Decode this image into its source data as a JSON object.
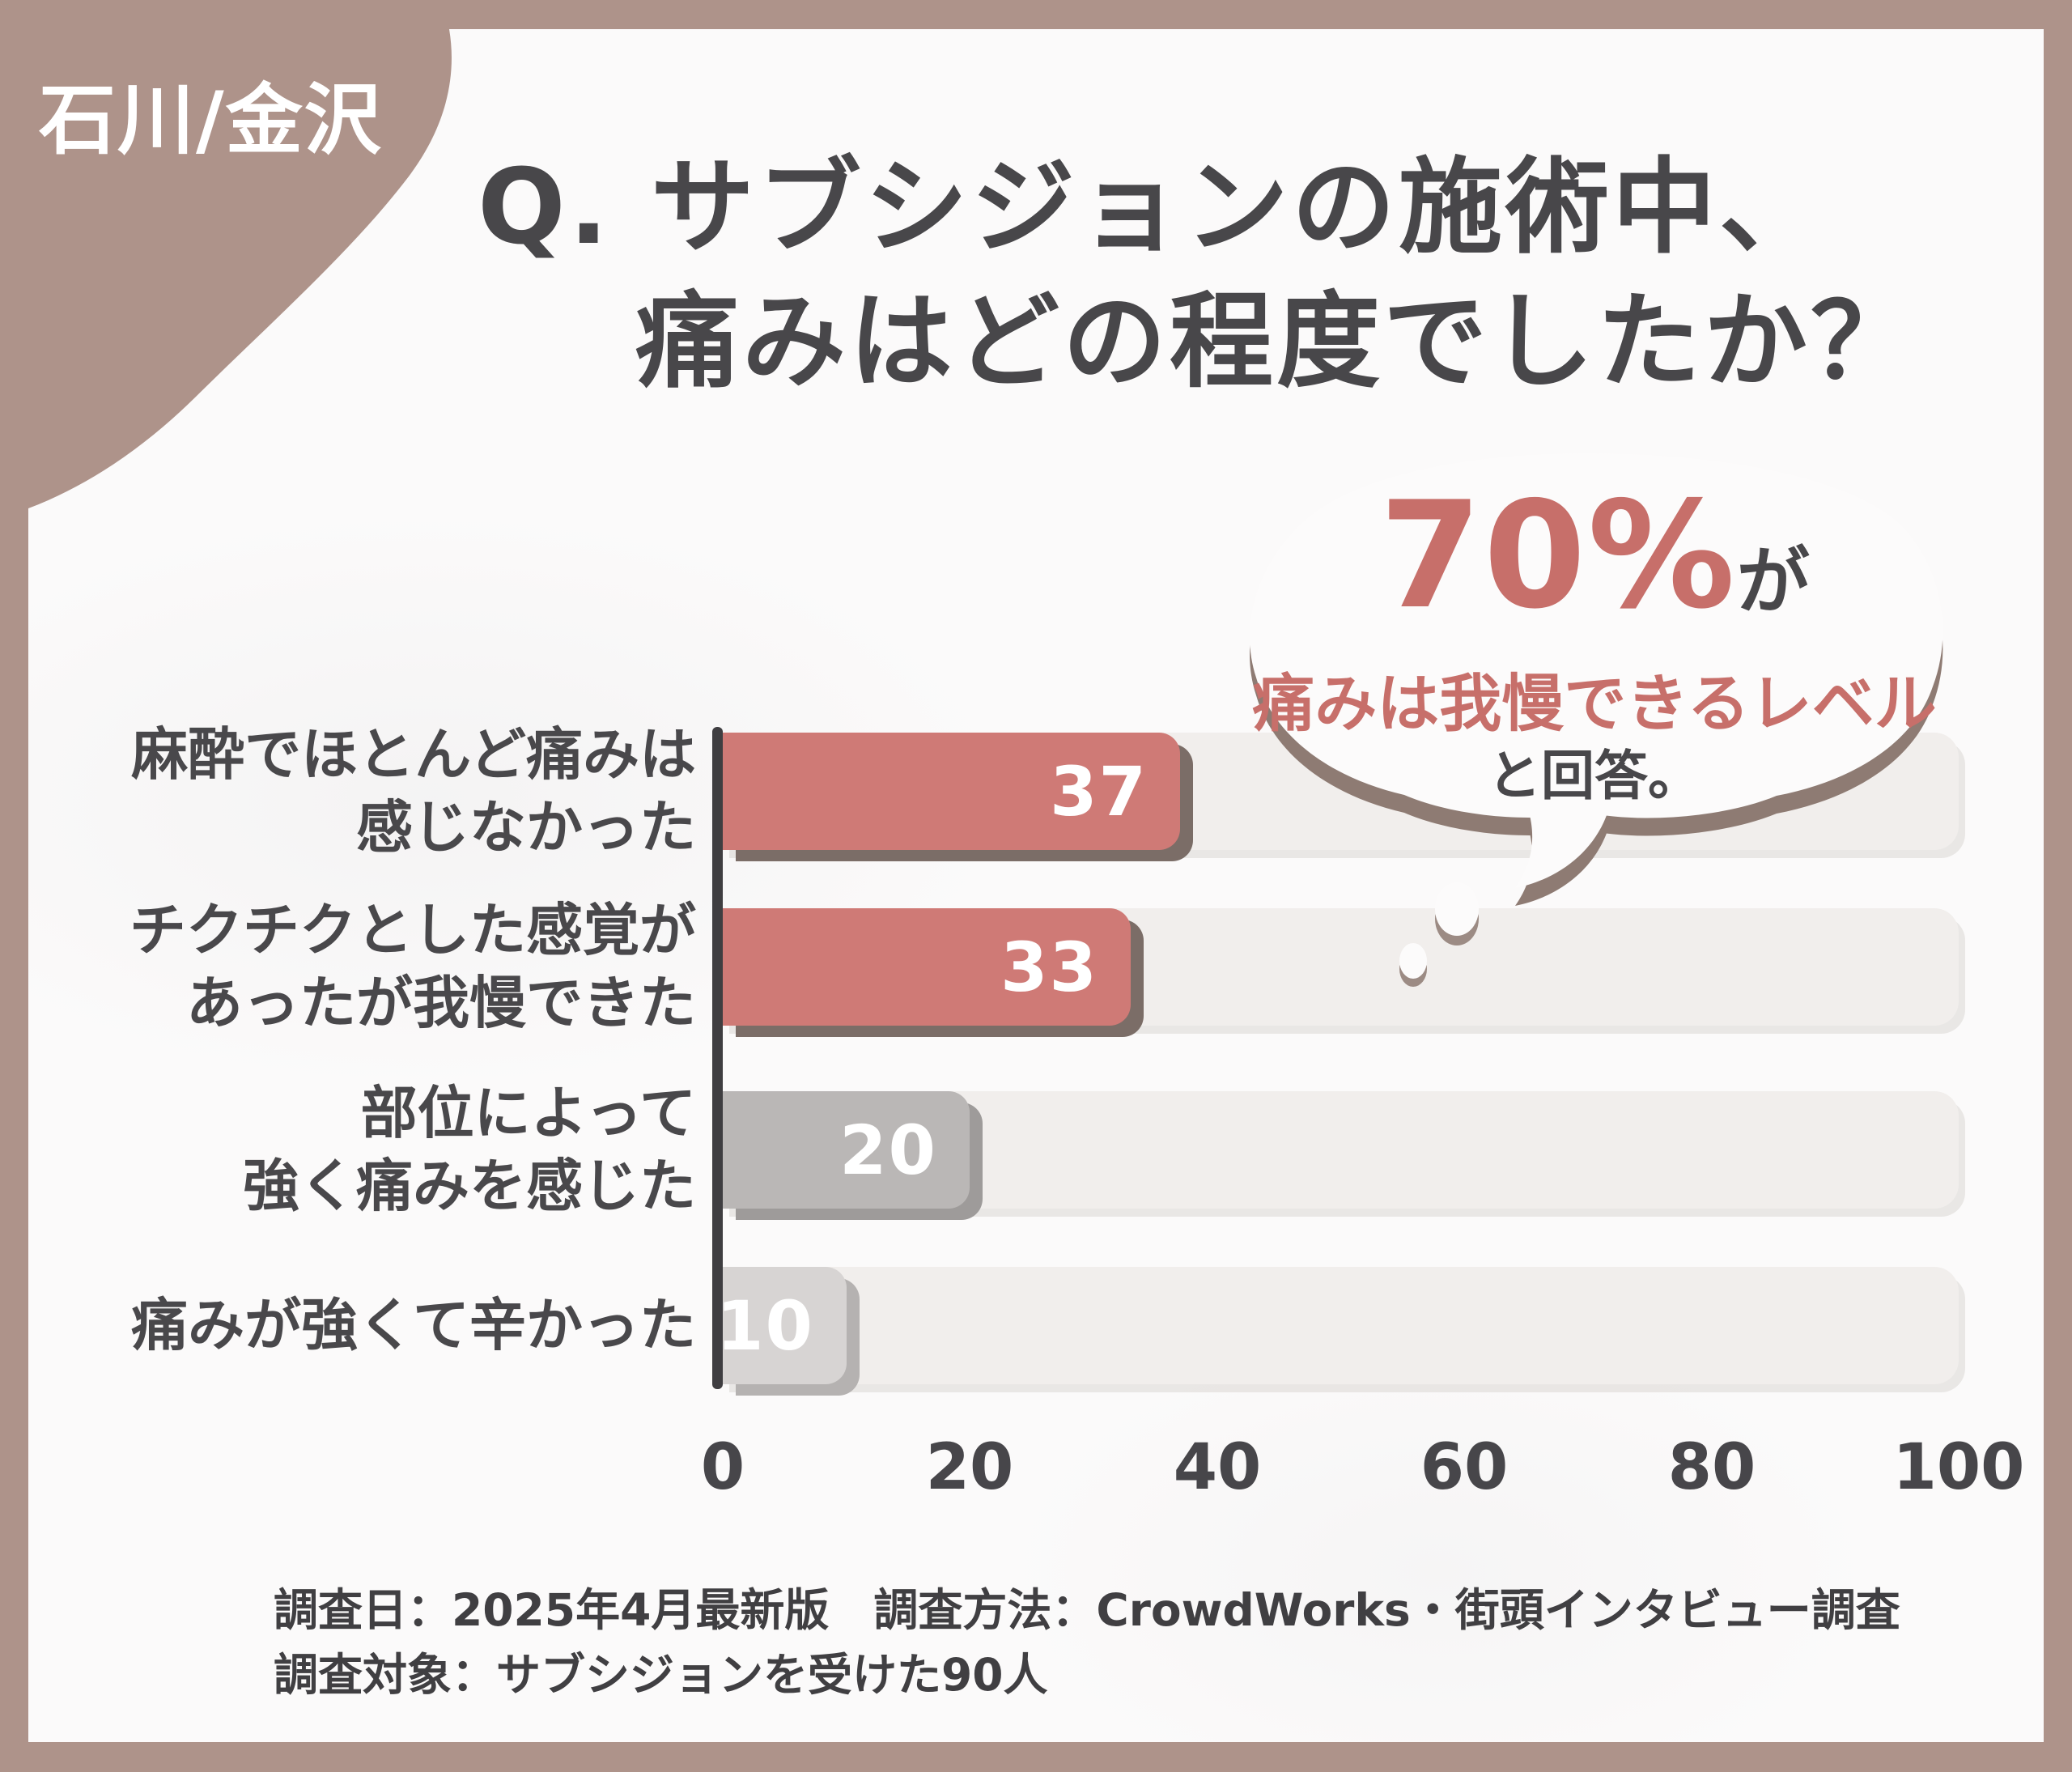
{
  "frame": {
    "region_label": "石川/金沢"
  },
  "title": {
    "line1": "Q. サブシジョンの施術中、",
    "line2": "痛みはどの程度でしたか？"
  },
  "bubble": {
    "percent": "70%",
    "percent_suffix": "が",
    "highlight": "痛みは我慢できるレベル",
    "closing": "と回答。"
  },
  "chart_data": {
    "type": "bar",
    "orientation": "horizontal",
    "title": "サブシジョンの施術中、痛みはどの程度でしたか？",
    "categories": [
      "麻酔でほとんど痛みは感じなかった",
      "チクチクとした感覚があったが我慢できた",
      "部位によって強く痛みを感じた",
      "痛みが強くて辛かった"
    ],
    "categories_lines": [
      [
        "麻酔でほとんど痛みは",
        "感じなかった"
      ],
      [
        "チクチクとした感覚が",
        "あったが我慢できた"
      ],
      [
        "部位によって",
        "強く痛みを感じた"
      ],
      [
        "痛みが強くて辛かった"
      ]
    ],
    "values": [
      37,
      33,
      20,
      10
    ],
    "xticks": [
      0,
      20,
      40,
      60,
      80,
      100
    ],
    "xlim": [
      0,
      100
    ],
    "grid": false,
    "legend": false,
    "bar_colors": [
      "#cf7a76",
      "#cf7a76",
      "#bab7b6",
      "#d7d4d3"
    ],
    "bar_shadow_colors": [
      "#7b6d67",
      "#7b6d67",
      "#9e9b9a",
      "#b5b2b1"
    ],
    "track_color": "#f1eeec",
    "value_label_color": "#ffffff"
  },
  "footer": {
    "line1": "調査日：2025年4月最新版　調査方法：CrowdWorks・街頭インタビュー調査",
    "line2": "調査対象：サブシジョンを受けた90人"
  },
  "colors": {
    "frame_brown": "#ae938a",
    "card_bg": "#fbfafa",
    "text_dark": "#48474a",
    "accent_red": "#c76f6a",
    "axis": "#3f3e41",
    "bubble_shadow": "#8e7b73",
    "droplet_shadow": "#9c8b84"
  }
}
